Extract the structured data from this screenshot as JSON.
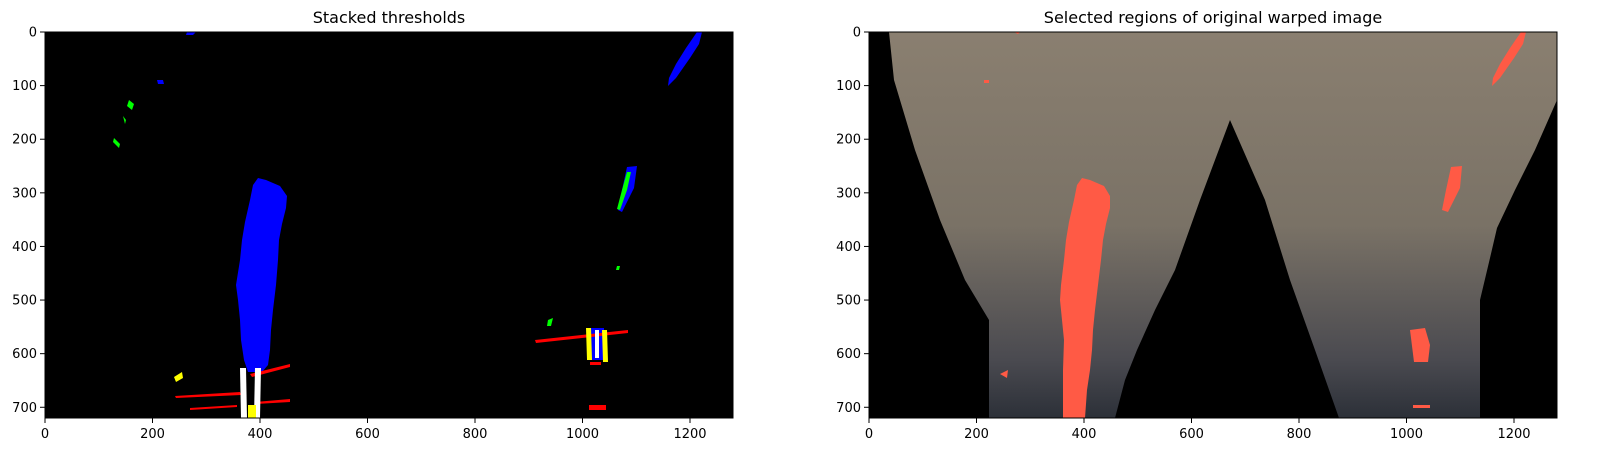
{
  "chart_data": [
    {
      "type": "image",
      "title": "Stacked thresholds",
      "xlim": [
        0,
        1280
      ],
      "ylim": [
        720,
        0
      ],
      "x_ticks": [
        0,
        200,
        400,
        600,
        800,
        1000,
        1200
      ],
      "y_ticks": [
        0,
        100,
        200,
        300,
        400,
        500,
        600,
        700
      ],
      "background_color": "#000000",
      "channel_colors": {
        "red": "#ff0000",
        "green": "#00ff00",
        "blue": "#0000ff",
        "overlap": "#ffff00"
      }
    },
    {
      "type": "image",
      "title": "Selected regions of original warped image",
      "xlim": [
        0,
        1280
      ],
      "ylim": [
        720,
        0
      ],
      "x_ticks": [
        0,
        200,
        400,
        600,
        800,
        1000,
        1200
      ],
      "y_ticks": [
        0,
        100,
        200,
        300,
        400,
        500,
        600,
        700
      ],
      "road_color": "#7a7065",
      "highlight_color": "#ff5a45"
    }
  ]
}
